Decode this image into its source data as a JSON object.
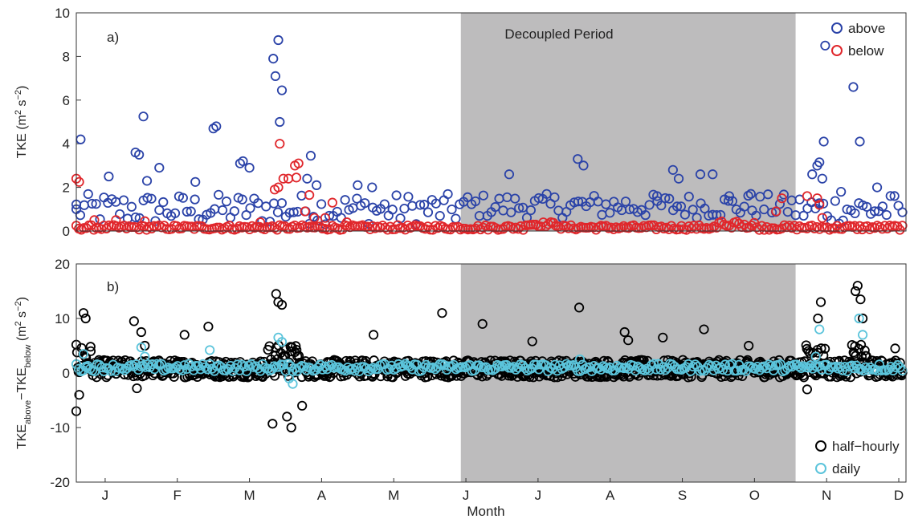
{
  "chart_data": [
    {
      "type": "scatter",
      "panel_label": "a)",
      "shaded_region_label": "Decoupled Period",
      "shaded_region": {
        "x": [
          5.33,
          9.97
        ]
      },
      "ylabel": {
        "base": "TKE (m",
        "sup1": "2",
        "mid": " s",
        "sup2": "−2",
        "end": ")"
      },
      "ylim": [
        0,
        10
      ],
      "xlim": [
        0,
        11.5
      ],
      "yticks": [
        0,
        2,
        4,
        6,
        8,
        10
      ],
      "legend": {
        "position": "top-right",
        "entries": [
          "above",
          "below"
        ]
      },
      "series": [
        {
          "name": "above",
          "color": "#2b43a8",
          "peaks": [
            [
              0.0,
              1.0
            ],
            [
              0.06,
              4.2
            ],
            [
              0.45,
              2.5
            ],
            [
              0.82,
              3.6
            ],
            [
              0.87,
              3.5
            ],
            [
              0.93,
              5.25
            ],
            [
              0.98,
              2.3
            ],
            [
              1.15,
              2.9
            ],
            [
              1.65,
              2.25
            ],
            [
              1.9,
              4.7
            ],
            [
              1.94,
              4.8
            ],
            [
              2.27,
              3.1
            ],
            [
              2.31,
              3.2
            ],
            [
              2.4,
              2.9
            ],
            [
              2.73,
              7.9
            ],
            [
              2.76,
              7.1
            ],
            [
              2.8,
              8.75
            ],
            [
              2.82,
              5.0
            ],
            [
              2.85,
              6.45
            ],
            [
              3.2,
              2.4
            ],
            [
              3.25,
              3.45
            ],
            [
              3.33,
              2.1
            ],
            [
              3.9,
              2.1
            ],
            [
              4.1,
              2.0
            ],
            [
              6.0,
              2.6
            ],
            [
              6.95,
              3.3
            ],
            [
              7.03,
              3.0
            ],
            [
              8.05,
              1.6
            ],
            [
              8.27,
              2.8
            ],
            [
              8.35,
              2.4
            ],
            [
              8.65,
              2.6
            ],
            [
              8.82,
              2.6
            ],
            [
              9.05,
              1.6
            ],
            [
              9.35,
              1.7
            ],
            [
              10.2,
              2.6
            ],
            [
              10.27,
              3.0
            ],
            [
              10.3,
              3.15
            ],
            [
              10.34,
              2.4
            ],
            [
              10.36,
              4.1
            ],
            [
              10.38,
              8.5
            ],
            [
              10.6,
              1.8
            ],
            [
              10.77,
              6.6
            ],
            [
              10.86,
              4.1
            ],
            [
              11.1,
              2.0
            ]
          ]
        },
        {
          "name": "below",
          "color": "#e0262b",
          "peaks": [
            [
              0.0,
              2.4
            ],
            [
              0.04,
              2.25
            ],
            [
              0.25,
              0.5
            ],
            [
              0.55,
              0.5
            ],
            [
              0.95,
              0.45
            ],
            [
              2.55,
              0.4
            ],
            [
              2.75,
              1.9
            ],
            [
              2.8,
              2.0
            ],
            [
              2.82,
              4.0
            ],
            [
              2.87,
              2.4
            ],
            [
              2.94,
              2.4
            ],
            [
              3.03,
              3.0
            ],
            [
              3.08,
              3.1
            ],
            [
              3.05,
              2.45
            ],
            [
              3.17,
              0.9
            ],
            [
              3.23,
              1.65
            ],
            [
              3.3,
              0.6
            ],
            [
              3.45,
              0.6
            ],
            [
              3.55,
              1.3
            ],
            [
              3.75,
              0.4
            ],
            [
              9.7,
              0.9
            ],
            [
              9.78,
              1.5
            ],
            [
              10.13,
              1.6
            ],
            [
              10.27,
              1.5
            ],
            [
              10.3,
              1.2
            ],
            [
              10.34,
              0.6
            ]
          ]
        }
      ]
    },
    {
      "type": "scatter",
      "panel_label": "b)",
      "ylabel": {
        "base": "TKE",
        "sub1": "above",
        "mid": "−TKE",
        "sub2": "below",
        "end": " (m",
        "sup1": "2",
        "mid2": " s",
        "sup2": "−2",
        "end2": ")"
      },
      "xlabel": "Month",
      "xticklabels": [
        "J",
        "F",
        "M",
        "A",
        "M",
        "J",
        "J",
        "A",
        "S",
        "O",
        "N",
        "D"
      ],
      "ylim": [
        -20,
        20
      ],
      "xlim": [
        0,
        11.5
      ],
      "yticks": [
        -20,
        -10,
        0,
        10,
        20
      ],
      "legend": {
        "position": "bottom-right",
        "entries": [
          "half−hourly",
          "daily"
        ]
      },
      "series": [
        {
          "name": "half−hourly",
          "color": "#000000",
          "peaks": [
            [
              0.0,
              -7.0
            ],
            [
              0.02,
              0.9
            ],
            [
              0.04,
              -4.0
            ],
            [
              0.1,
              11.0
            ],
            [
              0.13,
              10.0
            ],
            [
              0.2,
              4.0
            ],
            [
              0.8,
              9.5
            ],
            [
              0.84,
              -2.8
            ],
            [
              0.9,
              7.5
            ],
            [
              0.95,
              5.0
            ],
            [
              1.5,
              7.0
            ],
            [
              1.83,
              8.5
            ],
            [
              2.77,
              14.5
            ],
            [
              2.8,
              13.0
            ],
            [
              2.85,
              12.5
            ],
            [
              2.72,
              -9.3
            ],
            [
              2.98,
              -10.0
            ],
            [
              2.92,
              -8.0
            ],
            [
              3.13,
              -6.0
            ],
            [
              4.12,
              7.0
            ],
            [
              5.07,
              11.0
            ],
            [
              5.63,
              9.0
            ],
            [
              6.32,
              5.8
            ],
            [
              6.97,
              12.0
            ],
            [
              7.6,
              7.5
            ],
            [
              7.65,
              6.0
            ],
            [
              8.13,
              6.5
            ],
            [
              8.7,
              8.0
            ],
            [
              9.32,
              5.0
            ],
            [
              10.13,
              -3.0
            ],
            [
              10.28,
              10.0
            ],
            [
              10.32,
              13.0
            ],
            [
              10.8,
              15.0
            ],
            [
              10.83,
              16.0
            ],
            [
              10.87,
              13.5
            ],
            [
              10.9,
              10.0
            ],
            [
              11.35,
              4.5
            ]
          ]
        },
        {
          "name": "daily",
          "color": "#5bc4db",
          "peaks": [
            [
              0.1,
              3.5
            ],
            [
              0.15,
              1.0
            ],
            [
              0.9,
              4.7
            ],
            [
              0.95,
              3.0
            ],
            [
              1.85,
              4.2
            ],
            [
              2.8,
              6.5
            ],
            [
              2.85,
              5.7
            ],
            [
              2.95,
              -1.0
            ],
            [
              3.0,
              -2.0
            ],
            [
              6.98,
              2.5
            ],
            [
              10.25,
              3.0
            ],
            [
              10.3,
              8.0
            ],
            [
              10.85,
              10.0
            ],
            [
              10.9,
              7.0
            ]
          ]
        }
      ]
    }
  ]
}
